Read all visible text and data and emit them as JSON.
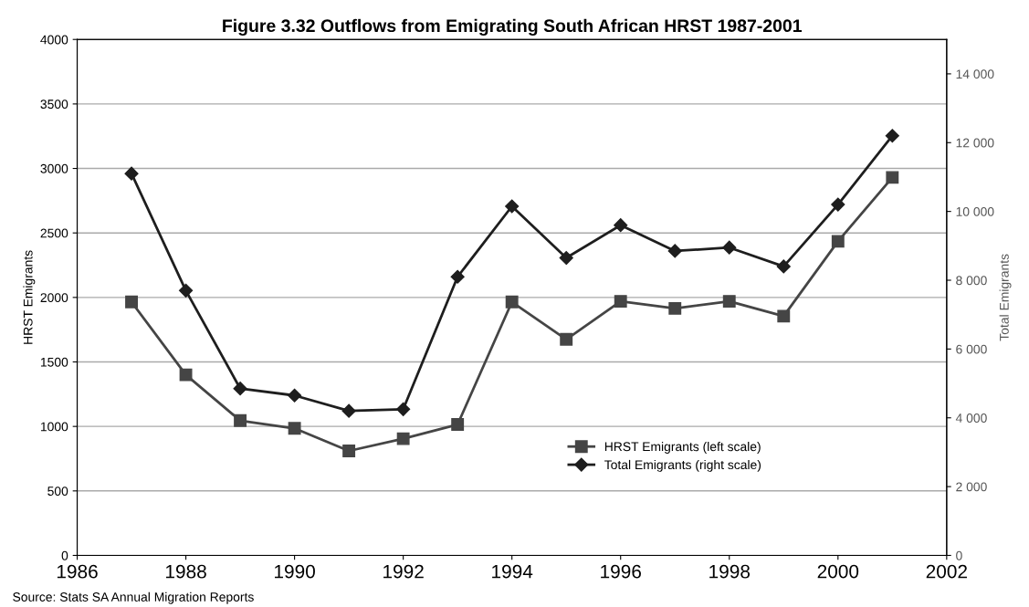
{
  "chart_data": {
    "type": "line",
    "title": "Figure 3.32 Outflows from Emigrating South African HRST 1987-2001",
    "ylabel": "HRST Emigrants",
    "y2label": "Total Emigrants",
    "x": [
      1987,
      1988,
      1989,
      1990,
      1991,
      1992,
      1993,
      1994,
      1995,
      1996,
      1997,
      1998,
      1999,
      2000,
      2001
    ],
    "series": [
      {
        "name": "HRST Emigrants (left scale)",
        "color": "#454545",
        "marker": "square",
        "values": [
          1965,
          1400,
          1045,
          985,
          810,
          905,
          1015,
          1965,
          1675,
          1970,
          1915,
          1970,
          1855,
          2435,
          2930
        ]
      },
      {
        "name": "Total Emigrants (right scale)",
        "color": "#1e1e1e",
        "marker": "diamond",
        "axis": "y2",
        "values": [
          11100,
          7700,
          4850,
          4650,
          4200,
          4250,
          8100,
          10150,
          8650,
          9600,
          8850,
          8950,
          8400,
          10200,
          12200
        ]
      }
    ],
    "xlim": [
      1986,
      2002
    ],
    "xticks": [
      1986,
      1988,
      1990,
      1992,
      1994,
      1996,
      1998,
      2000,
      2002
    ],
    "ylim": [
      0,
      4000
    ],
    "yticks": [
      0,
      500,
      1000,
      1500,
      2000,
      2500,
      3000,
      3500,
      4000
    ],
    "y2lim": [
      0,
      15000
    ],
    "y2ticks": [
      {
        "value": 0,
        "label": "0"
      },
      {
        "value": 2000,
        "label": "2 000"
      },
      {
        "value": 4000,
        "label": "4 000"
      },
      {
        "value": 6000,
        "label": "6 000"
      },
      {
        "value": 8000,
        "label": "8 000"
      },
      {
        "value": 10000,
        "label": "10 000"
      },
      {
        "value": 12000,
        "label": "12 000"
      },
      {
        "value": 14000,
        "label": "14 000"
      }
    ],
    "grid": "y",
    "legend": "bottom right",
    "line_style": "solid",
    "annotations": [
      "Source: Stats SA Annual Migration Reports"
    ]
  }
}
